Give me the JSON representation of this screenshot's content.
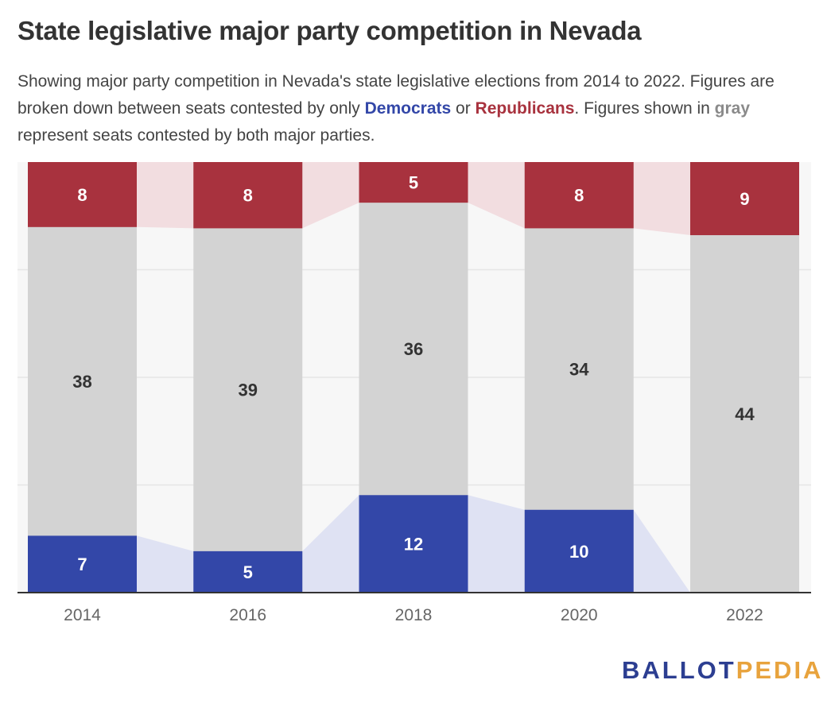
{
  "title": "State legislative major party competition in Nevada",
  "subtitle": {
    "part1": "Showing major party competition in Nevada's state legislative elections from 2014 to 2022. Figures are broken down between seats contested by only ",
    "democrats": "Democrats",
    "or": " or ",
    "republicans": "Republicans",
    "part2": ". Figures shown in ",
    "gray": "gray",
    "part3": " represent seats contested by both major parties."
  },
  "colors": {
    "democrat": "#3347a8",
    "republican": "#a8323e",
    "both": "#d3d3d3",
    "democrat_band": "#dfe2f3",
    "republican_band": "#f2dde0",
    "background_band": "#f7f7f7",
    "grid": "#e6e6e6",
    "axis": "#333333"
  },
  "chart_data": {
    "type": "bar",
    "stacked": true,
    "normalized": true,
    "categories": [
      "2014",
      "2016",
      "2018",
      "2020",
      "2022"
    ],
    "series": [
      {
        "name": "Democrats",
        "values": [
          7,
          5,
          12,
          10,
          0
        ]
      },
      {
        "name": "Republicans",
        "values": [
          8,
          8,
          5,
          8,
          9
        ]
      }
    ],
    "both_parties_values": [
      38,
      39,
      36,
      34,
      44
    ],
    "grid": true,
    "legend": "none"
  },
  "logo": {
    "ballot": "BALLOT",
    "pedia": "PEDIA"
  }
}
